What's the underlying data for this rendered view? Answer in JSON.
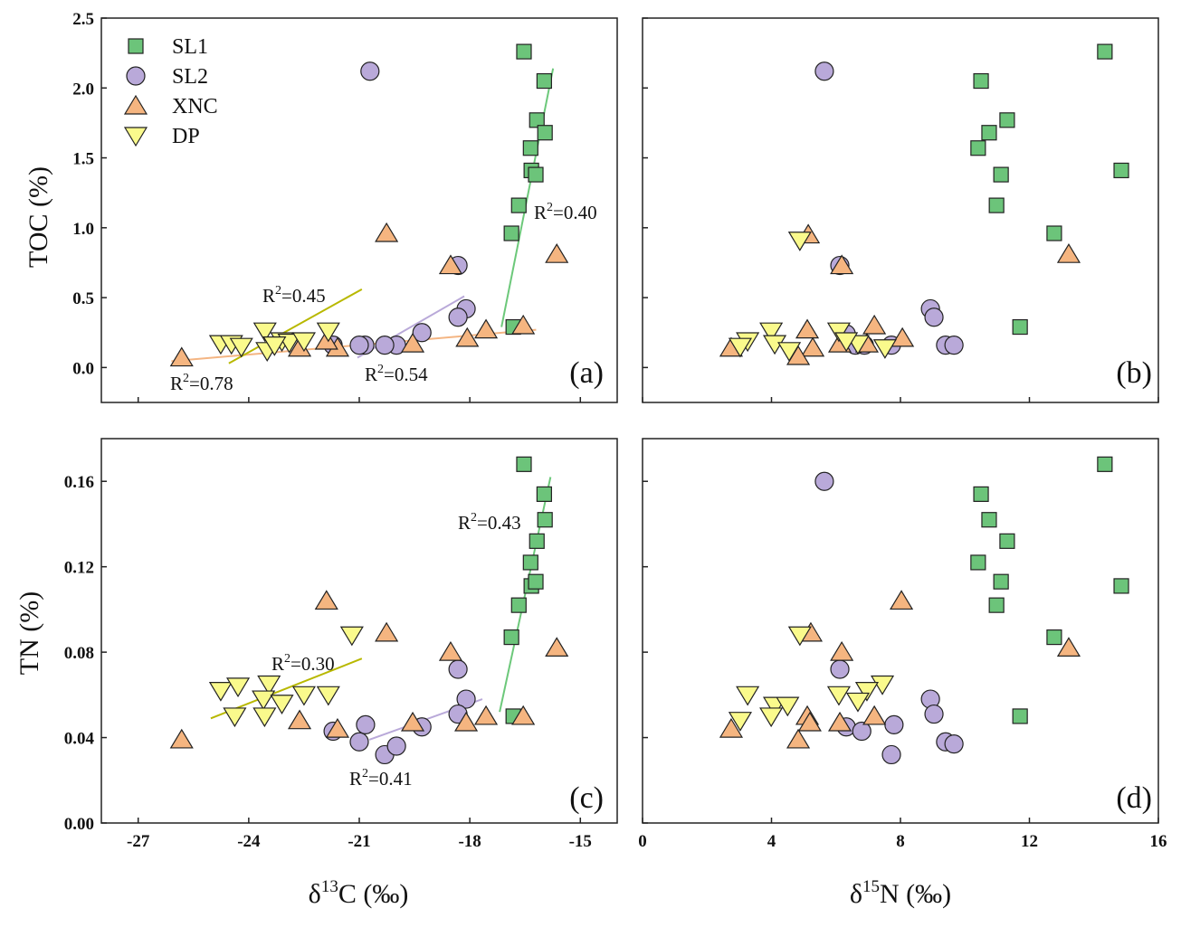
{
  "series_styles": {
    "SL1": {
      "marker": "square",
      "fill": "#6cc47a",
      "line": "#6cc87a"
    },
    "SL2": {
      "marker": "circle",
      "fill": "#b9a9d9",
      "line": "#b9a9d9"
    },
    "XNC": {
      "marker": "triangle-up",
      "fill": "#f5b580",
      "line": "#f4b583"
    },
    "DP": {
      "marker": "triangle-down",
      "fill": "#fafa8c",
      "line": "#b8b800"
    }
  },
  "legend": {
    "placement": "top-left",
    "entries": [
      "SL1",
      "SL2",
      "XNC",
      "DP"
    ]
  },
  "chart_data": [
    {
      "type": "scatter",
      "tag": "(a)",
      "xlabel": {
        "main": "δ",
        "sup": "13",
        "rest": "C (‰)"
      },
      "ylabel": "TOC (%)",
      "xlim": [
        -28,
        -14
      ],
      "ylim": [
        -0.25,
        2.5
      ],
      "xticks": [
        -27,
        -24,
        -21,
        -18,
        -15
      ],
      "yticks": [
        "0.0",
        "0.5",
        "1.0",
        "1.5",
        "2.0",
        "2.5"
      ],
      "show_xticklabels": false,
      "show_yticklabels": true,
      "series": [
        {
          "name": "SL1",
          "points": [
            [
              -16.53,
              2.26
            ],
            [
              -15.98,
              2.05
            ],
            [
              -16.18,
              1.77
            ],
            [
              -15.96,
              1.68
            ],
            [
              -16.35,
              1.57
            ],
            [
              -16.33,
              1.41
            ],
            [
              -16.21,
              1.38
            ],
            [
              -16.67,
              1.16
            ],
            [
              -16.87,
              0.96
            ],
            [
              -16.82,
              0.29
            ]
          ]
        },
        {
          "name": "SL2",
          "points": [
            [
              -20.71,
              2.12
            ],
            [
              -18.32,
              0.73
            ],
            [
              -18.1,
              0.42
            ],
            [
              -18.32,
              0.36
            ],
            [
              -19.3,
              0.25
            ],
            [
              -19.99,
              0.16
            ],
            [
              -20.31,
              0.16
            ],
            [
              -20.85,
              0.16
            ],
            [
              -21.0,
              0.16
            ],
            [
              -21.71,
              0.16
            ]
          ]
        },
        {
          "name": "XNC",
          "points": [
            [
              -25.82,
              0.07
            ],
            [
              -20.26,
              0.96
            ],
            [
              -18.52,
              0.73
            ],
            [
              -15.64,
              0.81
            ],
            [
              -16.55,
              0.3
            ],
            [
              -17.56,
              0.27
            ],
            [
              -18.07,
              0.21
            ],
            [
              -19.55,
              0.17
            ],
            [
              -21.59,
              0.14
            ],
            [
              -22.62,
              0.14
            ],
            [
              -21.89,
              0.19
            ]
          ]
        },
        {
          "name": "DP",
          "points": [
            [
              -24.76,
              0.17
            ],
            [
              -24.47,
              0.17
            ],
            [
              -24.2,
              0.15
            ],
            [
              -23.56,
              0.26
            ],
            [
              -23.5,
              0.12
            ],
            [
              -23.1,
              0.19
            ],
            [
              -22.9,
              0.18
            ],
            [
              -22.5,
              0.19
            ],
            [
              -21.84,
              0.26
            ],
            [
              -23.3,
              0.16
            ]
          ]
        }
      ],
      "fits": [
        {
          "series": "SL1",
          "from": [
            -17.14,
            0.29
          ],
          "to": [
            -15.74,
            2.14
          ],
          "label": "R²=0.40"
        },
        {
          "series": "XNC",
          "from": [
            -26.1,
            0.045
          ],
          "to": [
            -16.2,
            0.27
          ],
          "label": "R²=0.78"
        },
        {
          "series": "DP",
          "from": [
            -24.54,
            0.03
          ],
          "to": [
            -20.93,
            0.56
          ],
          "label": "R²=0.45"
        },
        {
          "series": "SL2",
          "from": [
            -21.05,
            0.07
          ],
          "to": [
            -18.15,
            0.51
          ],
          "label": "R²=0.54"
        }
      ]
    },
    {
      "type": "scatter",
      "tag": "(b)",
      "xlim": [
        0,
        16
      ],
      "ylim": [
        -0.25,
        2.5
      ],
      "xticks": [
        0,
        4,
        8,
        12,
        16
      ],
      "yticks": [
        "0.0",
        "0.5",
        "1.0",
        "1.5",
        "2.0",
        "2.5"
      ],
      "show_xticklabels": false,
      "show_yticklabels": false,
      "series": [
        {
          "name": "SL1",
          "points": [
            [
              14.34,
              2.26
            ],
            [
              10.5,
              2.05
            ],
            [
              11.31,
              1.77
            ],
            [
              10.75,
              1.68
            ],
            [
              10.41,
              1.57
            ],
            [
              14.85,
              1.41
            ],
            [
              11.12,
              1.38
            ],
            [
              10.98,
              1.16
            ],
            [
              12.77,
              0.96
            ],
            [
              11.71,
              0.29
            ]
          ]
        },
        {
          "name": "SL2",
          "points": [
            [
              5.64,
              2.12
            ],
            [
              6.12,
              0.73
            ],
            [
              8.93,
              0.42
            ],
            [
              9.04,
              0.36
            ],
            [
              6.32,
              0.24
            ],
            [
              9.4,
              0.16
            ],
            [
              9.66,
              0.16
            ],
            [
              7.72,
              0.16
            ],
            [
              6.88,
              0.16
            ],
            [
              6.6,
              0.16
            ]
          ]
        },
        {
          "name": "XNC",
          "points": [
            [
              5.14,
              0.95
            ],
            [
              6.18,
              0.73
            ],
            [
              13.22,
              0.81
            ],
            [
              7.19,
              0.3
            ],
            [
              5.11,
              0.27
            ],
            [
              8.06,
              0.21
            ],
            [
              6.12,
              0.17
            ],
            [
              5.28,
              0.14
            ],
            [
              2.75,
              0.14
            ],
            [
              4.83,
              0.08
            ],
            [
              6.96,
              0.17
            ]
          ]
        },
        {
          "name": "DP",
          "points": [
            [
              4.88,
              0.91
            ],
            [
              3.99,
              0.26
            ],
            [
              6.09,
              0.26
            ],
            [
              3.26,
              0.19
            ],
            [
              4.1,
              0.17
            ],
            [
              4.55,
              0.12
            ],
            [
              3.03,
              0.15
            ],
            [
              6.68,
              0.17
            ],
            [
              7.52,
              0.14
            ],
            [
              6.32,
              0.19
            ]
          ]
        }
      ],
      "fits": []
    },
    {
      "type": "scatter",
      "tag": "(c)",
      "xlabel": {
        "main": "δ",
        "sup": "13",
        "rest": "C (‰)"
      },
      "ylabel": "TN (%)",
      "xlim": [
        -28,
        -14
      ],
      "ylim": [
        0,
        0.18
      ],
      "xticks": [
        -27,
        -24,
        -21,
        -18,
        -15
      ],
      "yticks": [
        "0.00",
        "0.04",
        "0.08",
        "0.12",
        "0.16"
      ],
      "show_xticklabels": true,
      "show_yticklabels": true,
      "series": [
        {
          "name": "SL1",
          "points": [
            [
              -16.53,
              0.168
            ],
            [
              -15.98,
              0.154
            ],
            [
              -15.96,
              0.142
            ],
            [
              -16.18,
              0.132
            ],
            [
              -16.35,
              0.122
            ],
            [
              -16.33,
              0.111
            ],
            [
              -16.21,
              0.113
            ],
            [
              -16.67,
              0.102
            ],
            [
              -16.87,
              0.087
            ],
            [
              -16.82,
              0.05
            ]
          ]
        },
        {
          "name": "SL2",
          "points": [
            [
              -18.32,
              0.072
            ],
            [
              -18.1,
              0.058
            ],
            [
              -18.32,
              0.051
            ],
            [
              -19.3,
              0.045
            ],
            [
              -20.83,
              0.046
            ],
            [
              -21.0,
              0.038
            ],
            [
              -20.31,
              0.032
            ],
            [
              -19.99,
              0.036
            ],
            [
              -21.71,
              0.043
            ]
          ]
        },
        {
          "name": "XNC",
          "points": [
            [
              -21.89,
              0.104
            ],
            [
              -20.26,
              0.089
            ],
            [
              -18.52,
              0.08
            ],
            [
              -15.64,
              0.082
            ],
            [
              -16.55,
              0.05
            ],
            [
              -17.56,
              0.05
            ],
            [
              -18.1,
              0.047
            ],
            [
              -19.55,
              0.047
            ],
            [
              -21.59,
              0.044
            ],
            [
              -22.62,
              0.048
            ],
            [
              -25.82,
              0.039
            ]
          ]
        },
        {
          "name": "DP",
          "points": [
            [
              -21.2,
              0.088
            ],
            [
              -24.76,
              0.062
            ],
            [
              -24.29,
              0.064
            ],
            [
              -23.45,
              0.065
            ],
            [
              -23.6,
              0.058
            ],
            [
              -23.1,
              0.056
            ],
            [
              -22.5,
              0.06
            ],
            [
              -21.84,
              0.06
            ],
            [
              -24.38,
              0.05
            ],
            [
              -23.57,
              0.05
            ]
          ]
        }
      ],
      "fits": [
        {
          "series": "SL1",
          "from": [
            -17.19,
            0.052
          ],
          "to": [
            -15.81,
            0.162
          ],
          "label": "R²=0.43"
        },
        {
          "series": "DP",
          "from": [
            -25.03,
            0.049
          ],
          "to": [
            -20.93,
            0.077
          ],
          "label": "R²=0.30"
        },
        {
          "series": "SL2",
          "from": [
            -20.73,
            0.039
          ],
          "to": [
            -17.66,
            0.058
          ],
          "label": "R²=0.41"
        }
      ]
    },
    {
      "type": "scatter",
      "tag": "(d)",
      "xlabel": {
        "main": "δ",
        "sup": "15",
        "rest": "N (‰)"
      },
      "xlim": [
        0,
        16
      ],
      "ylim": [
        0,
        0.18
      ],
      "xticks": [
        0,
        4,
        8,
        12,
        16
      ],
      "yticks": [
        "0.00",
        "0.04",
        "0.08",
        "0.12",
        "0.16"
      ],
      "show_xticklabels": true,
      "show_yticklabels": false,
      "series": [
        {
          "name": "SL1",
          "points": [
            [
              14.34,
              0.168
            ],
            [
              10.5,
              0.154
            ],
            [
              10.75,
              0.142
            ],
            [
              11.31,
              0.132
            ],
            [
              10.41,
              0.122
            ],
            [
              14.85,
              0.111
            ],
            [
              11.12,
              0.113
            ],
            [
              10.98,
              0.102
            ],
            [
              12.77,
              0.087
            ],
            [
              11.71,
              0.05
            ]
          ]
        },
        {
          "name": "SL2",
          "points": [
            [
              5.64,
              0.16
            ],
            [
              6.12,
              0.072
            ],
            [
              8.93,
              0.058
            ],
            [
              9.04,
              0.051
            ],
            [
              6.32,
              0.045
            ],
            [
              9.4,
              0.038
            ],
            [
              9.66,
              0.037
            ],
            [
              7.72,
              0.032
            ],
            [
              7.8,
              0.046
            ],
            [
              6.8,
              0.043
            ]
          ]
        },
        {
          "name": "XNC",
          "points": [
            [
              8.03,
              0.104
            ],
            [
              5.22,
              0.089
            ],
            [
              6.18,
              0.08
            ],
            [
              13.22,
              0.082
            ],
            [
              7.19,
              0.05
            ],
            [
              5.11,
              0.05
            ],
            [
              5.19,
              0.047
            ],
            [
              6.12,
              0.047
            ],
            [
              2.75,
              0.044
            ],
            [
              4.83,
              0.039
            ]
          ]
        },
        {
          "name": "DP",
          "points": [
            [
              4.88,
              0.088
            ],
            [
              3.26,
              0.06
            ],
            [
              7.44,
              0.065
            ],
            [
              6.96,
              0.062
            ],
            [
              6.09,
              0.06
            ],
            [
              4.1,
              0.055
            ],
            [
              4.5,
              0.055
            ],
            [
              3.99,
              0.05
            ],
            [
              3.03,
              0.048
            ],
            [
              6.68,
              0.057
            ]
          ]
        }
      ],
      "fits": []
    }
  ]
}
